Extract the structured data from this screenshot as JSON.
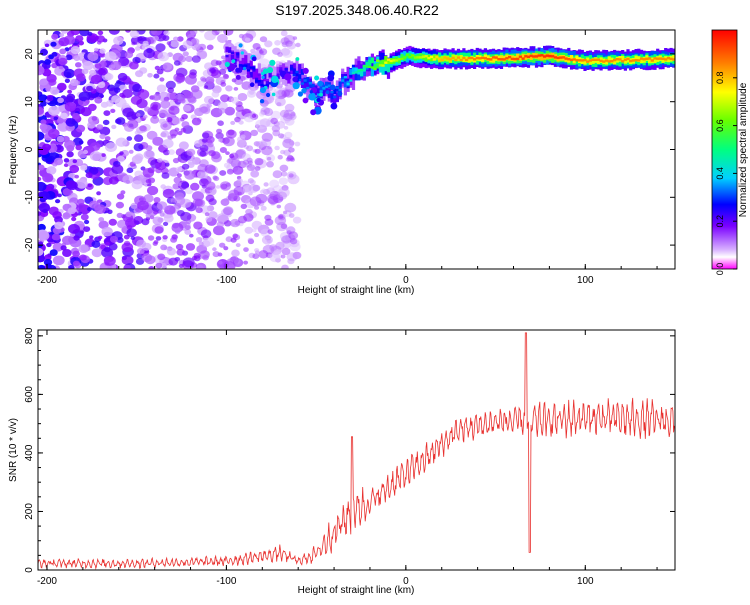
{
  "page": {
    "title": "S197.2025.348.06.40.R22"
  },
  "colors": {
    "signal": "#e8302e",
    "frame": "#000000",
    "background": "#ffffff"
  },
  "chart_data": [
    {
      "type": "heatmap",
      "title": "S197.2025.348.06.40.R22",
      "xlabel": "Height of straight line (km)",
      "ylabel": "Frequency (Hz)",
      "xlim": [
        -205,
        150
      ],
      "ylim": [
        -25,
        25
      ],
      "xticks": [
        -200,
        -100,
        0,
        100
      ],
      "yticks": [
        -20,
        -10,
        0,
        10,
        20
      ],
      "colorbar": {
        "label": "Normalized spectral amplitude",
        "range": [
          0,
          1
        ],
        "ticks": [
          0.0,
          0.2,
          0.4,
          0.6,
          0.8
        ],
        "colormap": "rainbow"
      },
      "ridge": {
        "description": "dominant frequency track",
        "points": [
          {
            "x": -100,
            "y": 20,
            "amp": 0.2
          },
          {
            "x": -90,
            "y": 18,
            "amp": 0.25
          },
          {
            "x": -80,
            "y": 14,
            "amp": 0.25
          },
          {
            "x": -70,
            "y": 16,
            "amp": 0.2
          },
          {
            "x": -60,
            "y": 16,
            "amp": 0.3
          },
          {
            "x": -50,
            "y": 11,
            "amp": 0.35
          },
          {
            "x": -45,
            "y": 14,
            "amp": 0.35
          },
          {
            "x": -40,
            "y": 11,
            "amp": 0.3
          },
          {
            "x": -35,
            "y": 14,
            "amp": 0.35
          },
          {
            "x": -25,
            "y": 17,
            "amp": 0.5
          },
          {
            "x": -10,
            "y": 18,
            "amp": 0.75
          },
          {
            "x": 0,
            "y": 19.5,
            "amp": 0.6
          },
          {
            "x": 20,
            "y": 19,
            "amp": 0.8
          },
          {
            "x": 50,
            "y": 19,
            "amp": 0.9
          },
          {
            "x": 80,
            "y": 19.5,
            "amp": 0.95
          },
          {
            "x": 100,
            "y": 18.5,
            "amp": 0.85
          },
          {
            "x": 150,
            "y": 19,
            "amp": 0.85
          }
        ]
      },
      "scatter_region": {
        "description": "low-amplitude broadband noise before onset",
        "x_range": [
          -205,
          -60
        ],
        "y_range": [
          -25,
          25
        ],
        "amp_range": [
          0.05,
          0.25
        ]
      }
    },
    {
      "type": "line",
      "xlabel": "Height of straight line (km)",
      "ylabel": "SNR (10 * v/v)",
      "xlim": [
        -205,
        150
      ],
      "ylim": [
        0,
        820
      ],
      "xticks": [
        -200,
        -100,
        0,
        100
      ],
      "yticks": [
        0,
        200,
        400,
        600,
        800
      ],
      "series": [
        {
          "color": "#e8302e",
          "envelope": [
            {
              "x": -205,
              "low": 5,
              "high": 40
            },
            {
              "x": -150,
              "low": 5,
              "high": 40
            },
            {
              "x": -100,
              "low": 10,
              "high": 50
            },
            {
              "x": -80,
              "low": 20,
              "high": 75
            },
            {
              "x": -70,
              "low": 25,
              "high": 90
            },
            {
              "x": -60,
              "low": 15,
              "high": 45
            },
            {
              "x": -50,
              "low": 20,
              "high": 90
            },
            {
              "x": -40,
              "low": 60,
              "high": 200
            },
            {
              "x": -30,
              "low": 120,
              "high": 280
            },
            {
              "x": -20,
              "low": 160,
              "high": 300
            },
            {
              "x": -10,
              "low": 220,
              "high": 340
            },
            {
              "x": 0,
              "low": 270,
              "high": 390
            },
            {
              "x": 10,
              "low": 320,
              "high": 430
            },
            {
              "x": 20,
              "low": 380,
              "high": 480
            },
            {
              "x": 30,
              "low": 430,
              "high": 530
            },
            {
              "x": 50,
              "low": 450,
              "high": 560
            },
            {
              "x": 65,
              "low": 450,
              "high": 570
            },
            {
              "x": 75,
              "low": 440,
              "high": 580
            },
            {
              "x": 100,
              "low": 450,
              "high": 590
            },
            {
              "x": 130,
              "low": 440,
              "high": 590
            },
            {
              "x": 150,
              "low": 440,
              "high": 580
            }
          ],
          "spikes": [
            {
              "x": -30,
              "y": 455
            },
            {
              "x": 67,
              "y": 810
            },
            {
              "x": 69,
              "y": 60
            }
          ]
        }
      ]
    }
  ]
}
